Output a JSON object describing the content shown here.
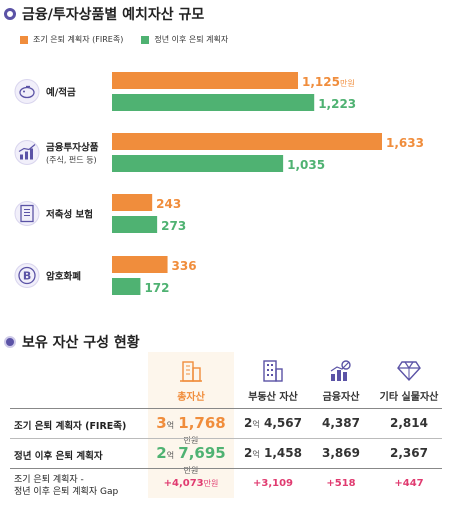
{
  "section1": {
    "title": "금융/투자상품별 예치자산 규모"
  },
  "section2": {
    "title": "보유 자산 구성 현황"
  },
  "colors": {
    "orange": "#f08d3c",
    "green": "#4fb272",
    "purple": "#5b53a6",
    "pink": "#e03b70"
  },
  "chart_data": {
    "type": "bar",
    "orientation": "horizontal",
    "categories": [
      "예/적금",
      "금융투자상품",
      "저축성 보험",
      "암호화폐"
    ],
    "category_sublabels": [
      "",
      "(주식, 펀드 등)",
      "",
      ""
    ],
    "category_icons": [
      "piggy-bank-icon",
      "growth-chart-icon",
      "insurance-document-icon",
      "bitcoin-icon"
    ],
    "series": [
      {
        "name": "조기 은퇴 계획자 (FIRE족)",
        "color": "#f08d3c",
        "values": [
          1125,
          1633,
          243,
          336
        ]
      },
      {
        "name": "정년 이후 은퇴 계획자",
        "color": "#4fb272",
        "values": [
          1223,
          1035,
          273,
          172
        ]
      }
    ],
    "value_labels": [
      [
        "1,125",
        "1,633",
        "243",
        "336"
      ],
      [
        "1,223",
        "1,035",
        "273",
        "172"
      ]
    ],
    "first_label_unit": "만원",
    "xlim": [
      0,
      1650
    ],
    "legend_position": "top-left",
    "grid": false
  },
  "table": {
    "columns": [
      {
        "label": "총자산",
        "icon": "building-icon"
      },
      {
        "label": "부동산 자산",
        "icon": "apartment-icon"
      },
      {
        "label": "금융자산",
        "icon": "money-chart-icon"
      },
      {
        "label": "기타 실물자산",
        "icon": "diamond-icon"
      }
    ],
    "rows": [
      {
        "label": "조기 은퇴 계획자 (FIRE족)",
        "total": {
          "eok": "3",
          "eok_unit": "억",
          "rest": "1,768",
          "unit": "만원"
        },
        "realestate": {
          "eok": "2",
          "eok_unit": "억",
          "rest": "4,567"
        },
        "financial": "4,387",
        "other": "2,814"
      },
      {
        "label": "정년 이후 은퇴 계획자",
        "total": {
          "eok": "2",
          "eok_unit": "억",
          "rest": "7,695",
          "unit": "만원"
        },
        "realestate": {
          "eok": "2",
          "eok_unit": "억",
          "rest": "1,458"
        },
        "financial": "3,869",
        "other": "2,367"
      }
    ],
    "gap_row": {
      "label_line1": "조기 은퇴 계획자 -",
      "label_line2": "정년 이후 은퇴 계획자 Gap",
      "total": "+4,073",
      "total_unit": "만원",
      "realestate": "+3,109",
      "financial": "+518",
      "other": "+447"
    }
  }
}
